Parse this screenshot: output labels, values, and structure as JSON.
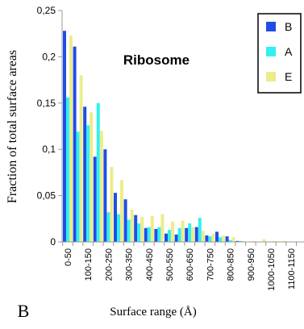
{
  "chart_data": {
    "type": "bar",
    "title": "Ribosome",
    "xlabel": "Surface range (Å)",
    "ylabel": "Fraction of total  surface areas",
    "panel_label": "B",
    "ylim": [
      0,
      0.25
    ],
    "yticks": [
      "0",
      "0,05",
      "0,1",
      "0,15",
      "0,2",
      "0,25"
    ],
    "tick_labels": [
      "0-50",
      "100-150",
      "200-250",
      "300-350",
      "400-450",
      "500-550",
      "600-650",
      "700-750",
      "800-850",
      "900-950",
      "1000-1050",
      "1100-1150"
    ],
    "categories": [
      "0-50",
      "50-100",
      "100-150",
      "150-200",
      "200-250",
      "250-300",
      "300-350",
      "350-400",
      "400-450",
      "450-500",
      "500-550",
      "550-600",
      "600-650",
      "650-700",
      "700-750",
      "750-800",
      "800-850",
      "850-900",
      "900-950",
      "950-1000",
      "1000-1050",
      "1050-1100",
      "1100-1150"
    ],
    "legend_position": "top-right",
    "grid": false,
    "series": [
      {
        "name": "B",
        "color": "#1f4ee6",
        "values": [
          0.228,
          0.211,
          0.146,
          0.092,
          0.1,
          0.053,
          0.046,
          0.029,
          0.015,
          0.014,
          0.009,
          0.008,
          0.015,
          0.016,
          0.007,
          0.011,
          0.006,
          0.001,
          0,
          0,
          0,
          0,
          0
        ]
      },
      {
        "name": "A",
        "color": "#33f0f0",
        "values": [
          0.156,
          0.119,
          0.126,
          0.15,
          0.032,
          0.03,
          0.024,
          0.02,
          0.016,
          0.016,
          0.013,
          0.015,
          0.02,
          0.026,
          0.006,
          0.005,
          0.002,
          0.001,
          0,
          0,
          0,
          0,
          0
        ]
      },
      {
        "name": "E",
        "color": "#ecec8a",
        "values": [
          0.223,
          0.18,
          0.14,
          0.12,
          0.081,
          0.067,
          0.035,
          0.027,
          0.028,
          0.03,
          0.022,
          0.023,
          0.016,
          0.012,
          0.009,
          0.007,
          0.005,
          0.001,
          0.001,
          0.003,
          0.001,
          0.001,
          0
        ]
      }
    ]
  }
}
